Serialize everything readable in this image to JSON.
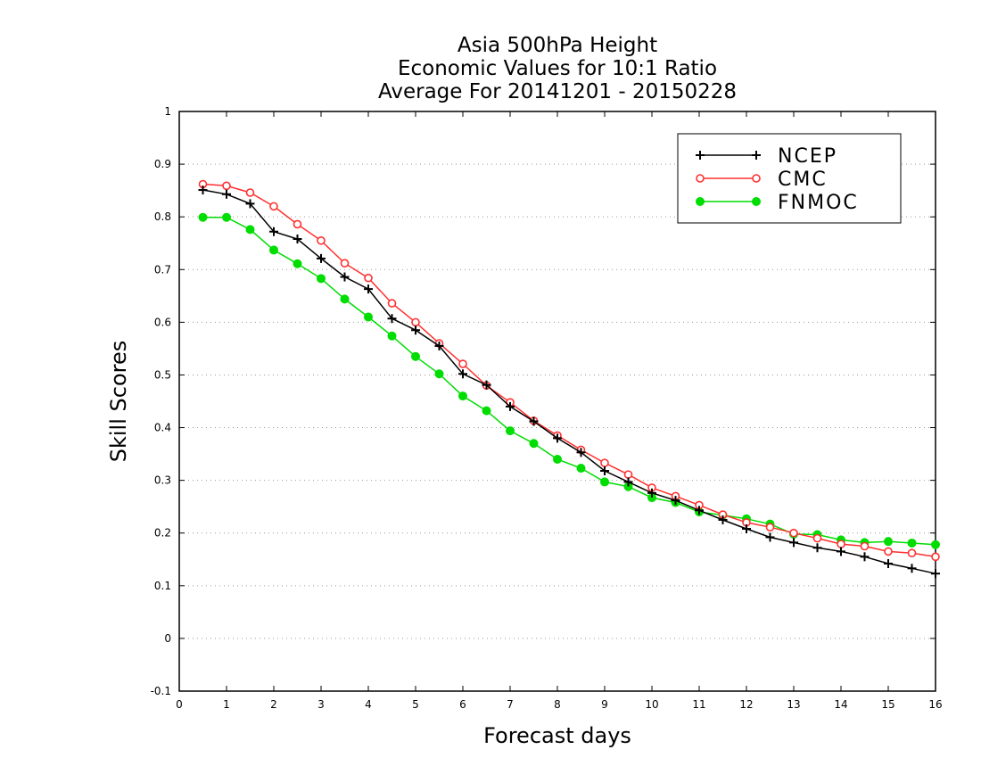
{
  "chart_data": {
    "type": "line",
    "title": [
      "Asia 500hPa Height",
      "Economic Values for 10:1 Ratio",
      "Average For 20141201 - 20150228"
    ],
    "xlabel": "Forecast days",
    "ylabel": "Skill Scores",
    "xlim": [
      0,
      16
    ],
    "ylim": [
      -0.1,
      1
    ],
    "xticks": [
      "0",
      "1",
      "2",
      "3",
      "4",
      "5",
      "6",
      "7",
      "8",
      "9",
      "10",
      "11",
      "12",
      "13",
      "14",
      "15",
      "16"
    ],
    "yticks": [
      "-0.1",
      "0",
      "0.1",
      "0.2",
      "0.3",
      "0.4",
      "0.5",
      "0.6",
      "0.7",
      "0.8",
      "0.9",
      "1"
    ],
    "grid": "horizontal dotted",
    "legend_position": "top-right",
    "x": [
      0.5,
      1,
      1.5,
      2,
      2.5,
      3,
      3.5,
      4,
      4.5,
      5,
      5.5,
      6,
      6.5,
      7,
      7.5,
      8,
      8.5,
      9,
      9.5,
      10,
      10.5,
      11,
      11.5,
      12,
      12.5,
      13,
      13.5,
      14,
      14.5,
      15,
      15.5,
      16
    ],
    "series": [
      {
        "name": "NCEP",
        "color": "#000000",
        "marker": "plus",
        "values": [
          0.851,
          0.843,
          0.825,
          0.772,
          0.758,
          0.721,
          0.686,
          0.663,
          0.607,
          0.585,
          0.555,
          0.502,
          0.481,
          0.44,
          0.412,
          0.38,
          0.353,
          0.318,
          0.297,
          0.276,
          0.262,
          0.243,
          0.225,
          0.208,
          0.192,
          0.182,
          0.172,
          0.165,
          0.155,
          0.142,
          0.133,
          0.123
        ]
      },
      {
        "name": "CMC",
        "color": "#ff3030",
        "marker": "open-circle",
        "values": [
          0.862,
          0.859,
          0.846,
          0.82,
          0.786,
          0.755,
          0.712,
          0.684,
          0.636,
          0.6,
          0.56,
          0.521,
          0.48,
          0.448,
          0.413,
          0.385,
          0.358,
          0.333,
          0.311,
          0.286,
          0.27,
          0.253,
          0.235,
          0.22,
          0.211,
          0.2,
          0.19,
          0.179,
          0.175,
          0.165,
          0.162,
          0.155
        ]
      },
      {
        "name": "FNMOC",
        "color": "#00dd00",
        "marker": "filled-circle",
        "values": [
          0.799,
          0.799,
          0.776,
          0.737,
          0.711,
          0.683,
          0.644,
          0.61,
          0.574,
          0.535,
          0.502,
          0.46,
          0.432,
          0.394,
          0.37,
          0.34,
          0.323,
          0.297,
          0.288,
          0.267,
          0.258,
          0.24,
          0.234,
          0.227,
          0.217,
          0.198,
          0.197,
          0.187,
          0.182,
          0.184,
          0.181,
          0.178
        ]
      }
    ]
  }
}
